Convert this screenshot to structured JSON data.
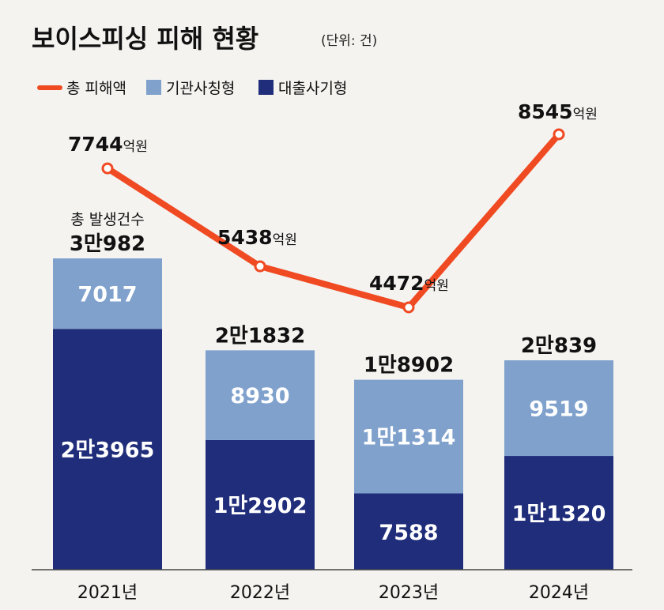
{
  "title": "보이스피싱 피해 현황",
  "unit_note": "(단위: 건)",
  "legend": [
    {
      "label": "총 피해액",
      "color": "#f04a23",
      "kind": "line"
    },
    {
      "label": "기관사칭형",
      "color": "#7fa1cc",
      "kind": "box"
    },
    {
      "label": "대출사기형",
      "color": "#1f2d7a",
      "kind": "box"
    }
  ],
  "chart_data": {
    "type": "bar",
    "stacked": true,
    "categories": [
      "2021년",
      "2022년",
      "2023년",
      "2024년"
    ],
    "series": [
      {
        "name": "대출사기형",
        "values": [
          23965,
          12902,
          7588,
          11320
        ],
        "labels": [
          "2만3965",
          "1만2902",
          "7588",
          "1만1320"
        ],
        "color": "#1f2d7a"
      },
      {
        "name": "기관사칭형",
        "values": [
          7017,
          8930,
          11314,
          9519
        ],
        "labels": [
          "7017",
          "8930",
          "1만1314",
          "9519"
        ],
        "color": "#7fa1cc"
      }
    ],
    "totals": {
      "caption": "총 발생건수",
      "values": [
        30982,
        21832,
        18902,
        20839
      ],
      "labels": [
        "3만982",
        "2만1832",
        "1만8902",
        "2만839"
      ]
    },
    "line_series": {
      "name": "총 피해액",
      "values": [
        7744,
        5438,
        4472,
        8545
      ],
      "labels": [
        "7744",
        "5438",
        "4472",
        "8545"
      ],
      "unit": "억원",
      "color": "#f04a23"
    },
    "ylim": [
      0,
      32000
    ],
    "line_ylim": [
      4000,
      9000
    ],
    "grid": false
  }
}
